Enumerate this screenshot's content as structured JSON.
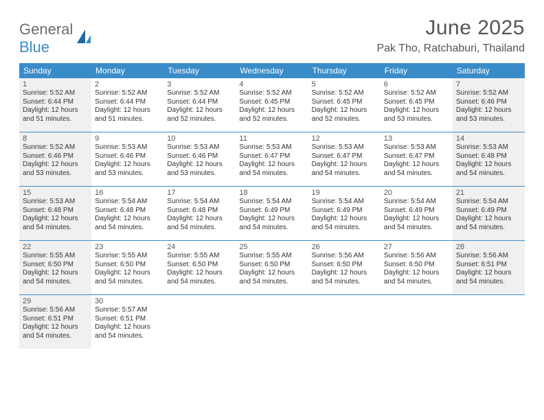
{
  "logo": {
    "word1": "General",
    "word2": "Blue"
  },
  "title": "June 2025",
  "location": "Pak Tho, Ratchaburi, Thailand",
  "colors": {
    "header_bg": "#3a8cc9",
    "shade_bg": "#f0f0f0",
    "text": "#333333",
    "title_text": "#555555"
  },
  "day_names": [
    "Sunday",
    "Monday",
    "Tuesday",
    "Wednesday",
    "Thursday",
    "Friday",
    "Saturday"
  ],
  "weeks": [
    [
      {
        "n": "1",
        "shade": true,
        "sr": "Sunrise: 5:52 AM",
        "ss": "Sunset: 6:44 PM",
        "d1": "Daylight: 12 hours",
        "d2": "and 51 minutes."
      },
      {
        "n": "2",
        "shade": false,
        "sr": "Sunrise: 5:52 AM",
        "ss": "Sunset: 6:44 PM",
        "d1": "Daylight: 12 hours",
        "d2": "and 51 minutes."
      },
      {
        "n": "3",
        "shade": false,
        "sr": "Sunrise: 5:52 AM",
        "ss": "Sunset: 6:44 PM",
        "d1": "Daylight: 12 hours",
        "d2": "and 52 minutes."
      },
      {
        "n": "4",
        "shade": false,
        "sr": "Sunrise: 5:52 AM",
        "ss": "Sunset: 6:45 PM",
        "d1": "Daylight: 12 hours",
        "d2": "and 52 minutes."
      },
      {
        "n": "5",
        "shade": false,
        "sr": "Sunrise: 5:52 AM",
        "ss": "Sunset: 6:45 PM",
        "d1": "Daylight: 12 hours",
        "d2": "and 52 minutes."
      },
      {
        "n": "6",
        "shade": false,
        "sr": "Sunrise: 5:52 AM",
        "ss": "Sunset: 6:45 PM",
        "d1": "Daylight: 12 hours",
        "d2": "and 53 minutes."
      },
      {
        "n": "7",
        "shade": true,
        "sr": "Sunrise: 5:52 AM",
        "ss": "Sunset: 6:46 PM",
        "d1": "Daylight: 12 hours",
        "d2": "and 53 minutes."
      }
    ],
    [
      {
        "n": "8",
        "shade": true,
        "sr": "Sunrise: 5:52 AM",
        "ss": "Sunset: 6:46 PM",
        "d1": "Daylight: 12 hours",
        "d2": "and 53 minutes."
      },
      {
        "n": "9",
        "shade": false,
        "sr": "Sunrise: 5:53 AM",
        "ss": "Sunset: 6:46 PM",
        "d1": "Daylight: 12 hours",
        "d2": "and 53 minutes."
      },
      {
        "n": "10",
        "shade": false,
        "sr": "Sunrise: 5:53 AM",
        "ss": "Sunset: 6:46 PM",
        "d1": "Daylight: 12 hours",
        "d2": "and 53 minutes."
      },
      {
        "n": "11",
        "shade": false,
        "sr": "Sunrise: 5:53 AM",
        "ss": "Sunset: 6:47 PM",
        "d1": "Daylight: 12 hours",
        "d2": "and 54 minutes."
      },
      {
        "n": "12",
        "shade": false,
        "sr": "Sunrise: 5:53 AM",
        "ss": "Sunset: 6:47 PM",
        "d1": "Daylight: 12 hours",
        "d2": "and 54 minutes."
      },
      {
        "n": "13",
        "shade": false,
        "sr": "Sunrise: 5:53 AM",
        "ss": "Sunset: 6:47 PM",
        "d1": "Daylight: 12 hours",
        "d2": "and 54 minutes."
      },
      {
        "n": "14",
        "shade": true,
        "sr": "Sunrise: 5:53 AM",
        "ss": "Sunset: 6:48 PM",
        "d1": "Daylight: 12 hours",
        "d2": "and 54 minutes."
      }
    ],
    [
      {
        "n": "15",
        "shade": true,
        "sr": "Sunrise: 5:53 AM",
        "ss": "Sunset: 6:48 PM",
        "d1": "Daylight: 12 hours",
        "d2": "and 54 minutes."
      },
      {
        "n": "16",
        "shade": false,
        "sr": "Sunrise: 5:54 AM",
        "ss": "Sunset: 6:48 PM",
        "d1": "Daylight: 12 hours",
        "d2": "and 54 minutes."
      },
      {
        "n": "17",
        "shade": false,
        "sr": "Sunrise: 5:54 AM",
        "ss": "Sunset: 6:48 PM",
        "d1": "Daylight: 12 hours",
        "d2": "and 54 minutes."
      },
      {
        "n": "18",
        "shade": false,
        "sr": "Sunrise: 5:54 AM",
        "ss": "Sunset: 6:49 PM",
        "d1": "Daylight: 12 hours",
        "d2": "and 54 minutes."
      },
      {
        "n": "19",
        "shade": false,
        "sr": "Sunrise: 5:54 AM",
        "ss": "Sunset: 6:49 PM",
        "d1": "Daylight: 12 hours",
        "d2": "and 54 minutes."
      },
      {
        "n": "20",
        "shade": false,
        "sr": "Sunrise: 5:54 AM",
        "ss": "Sunset: 6:49 PM",
        "d1": "Daylight: 12 hours",
        "d2": "and 54 minutes."
      },
      {
        "n": "21",
        "shade": true,
        "sr": "Sunrise: 5:54 AM",
        "ss": "Sunset: 6:49 PM",
        "d1": "Daylight: 12 hours",
        "d2": "and 54 minutes."
      }
    ],
    [
      {
        "n": "22",
        "shade": true,
        "sr": "Sunrise: 5:55 AM",
        "ss": "Sunset: 6:50 PM",
        "d1": "Daylight: 12 hours",
        "d2": "and 54 minutes."
      },
      {
        "n": "23",
        "shade": false,
        "sr": "Sunrise: 5:55 AM",
        "ss": "Sunset: 6:50 PM",
        "d1": "Daylight: 12 hours",
        "d2": "and 54 minutes."
      },
      {
        "n": "24",
        "shade": false,
        "sr": "Sunrise: 5:55 AM",
        "ss": "Sunset: 6:50 PM",
        "d1": "Daylight: 12 hours",
        "d2": "and 54 minutes."
      },
      {
        "n": "25",
        "shade": false,
        "sr": "Sunrise: 5:55 AM",
        "ss": "Sunset: 6:50 PM",
        "d1": "Daylight: 12 hours",
        "d2": "and 54 minutes."
      },
      {
        "n": "26",
        "shade": false,
        "sr": "Sunrise: 5:56 AM",
        "ss": "Sunset: 6:50 PM",
        "d1": "Daylight: 12 hours",
        "d2": "and 54 minutes."
      },
      {
        "n": "27",
        "shade": false,
        "sr": "Sunrise: 5:56 AM",
        "ss": "Sunset: 6:50 PM",
        "d1": "Daylight: 12 hours",
        "d2": "and 54 minutes."
      },
      {
        "n": "28",
        "shade": true,
        "sr": "Sunrise: 5:56 AM",
        "ss": "Sunset: 6:51 PM",
        "d1": "Daylight: 12 hours",
        "d2": "and 54 minutes."
      }
    ],
    [
      {
        "n": "29",
        "shade": true,
        "sr": "Sunrise: 5:56 AM",
        "ss": "Sunset: 6:51 PM",
        "d1": "Daylight: 12 hours",
        "d2": "and 54 minutes."
      },
      {
        "n": "30",
        "shade": false,
        "sr": "Sunrise: 5:57 AM",
        "ss": "Sunset: 6:51 PM",
        "d1": "Daylight: 12 hours",
        "d2": "and 54 minutes."
      },
      null,
      null,
      null,
      null,
      null
    ]
  ]
}
